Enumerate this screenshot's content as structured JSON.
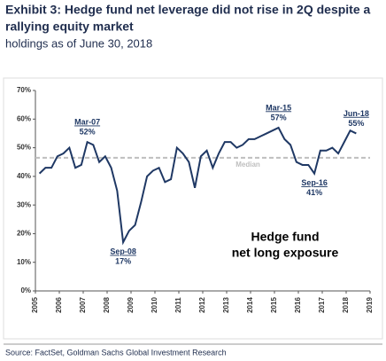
{
  "chart_data": {
    "type": "line",
    "title": [
      "Exhibit 3: Hedge fund net leverage did not rise in 2Q despite a",
      "rallying equity market"
    ],
    "subtitle": "holdings as of June 30, 2018",
    "source": "Source: FactSet, Goldman Sachs Global Investment Research",
    "note": [
      "Hedge fund",
      "net long exposure"
    ],
    "x": [
      2005.17,
      2005.42,
      2005.67,
      2005.92,
      2006.17,
      2006.42,
      2006.67,
      2006.92,
      2007.17,
      2007.42,
      2007.67,
      2007.92,
      2008.17,
      2008.42,
      2008.67,
      2008.92,
      2009.17,
      2009.42,
      2009.67,
      2009.92,
      2010.17,
      2010.42,
      2010.67,
      2010.92,
      2011.17,
      2011.42,
      2011.67,
      2011.92,
      2012.17,
      2012.42,
      2012.67,
      2012.92,
      2013.17,
      2013.42,
      2013.67,
      2013.92,
      2014.17,
      2014.42,
      2014.67,
      2014.92,
      2015.17,
      2015.42,
      2015.67,
      2015.92,
      2016.17,
      2016.42,
      2016.67,
      2016.92,
      2017.17,
      2017.42,
      2017.67,
      2017.92,
      2018.17,
      2018.42
    ],
    "series": [
      {
        "name": "Hedge fund net long exposure",
        "color": "#1f3864",
        "values": [
          41,
          43,
          43,
          47,
          48,
          50,
          43,
          44,
          52,
          51,
          45,
          47,
          43,
          35,
          17,
          21,
          23,
          31,
          40,
          42,
          43,
          38,
          39,
          50,
          48,
          45,
          36,
          47,
          49,
          43,
          48,
          52,
          52,
          50,
          51,
          53,
          53,
          54,
          55,
          56,
          57,
          53,
          51,
          45,
          44,
          44,
          41,
          49,
          49,
          50,
          48,
          52,
          56,
          55
        ]
      }
    ],
    "median": 46.5,
    "median_label": "Median",
    "median_color": "#bfbfbf",
    "annotations": [
      {
        "x": 2007.17,
        "y": 52,
        "label": "Mar-07",
        "value_label": "52%"
      },
      {
        "x": 2008.67,
        "y": 17,
        "label": "Sep-08",
        "value_label": "17%"
      },
      {
        "x": 2015.17,
        "y": 57,
        "label": "Mar-15",
        "value_label": "57%"
      },
      {
        "x": 2016.67,
        "y": 41,
        "label": "Sep-16",
        "value_label": "41%"
      },
      {
        "x": 2018.42,
        "y": 55,
        "label": "Jun-18",
        "value_label": "55%"
      }
    ],
    "xlim": [
      2005,
      2019
    ],
    "xticks": [
      2005,
      2006,
      2007,
      2008,
      2009,
      2010,
      2011,
      2012,
      2013,
      2014,
      2015,
      2016,
      2017,
      2018,
      2019
    ],
    "ylim": [
      0,
      70
    ],
    "yticks": [
      {
        "value": 0,
        "label": "0%"
      },
      {
        "value": 10,
        "label": "10%"
      },
      {
        "value": 20,
        "label": "20%"
      },
      {
        "value": 30,
        "label": "30%"
      },
      {
        "value": 40,
        "label": "40%"
      },
      {
        "value": 50,
        "label": "50%"
      },
      {
        "value": 60,
        "label": "60%"
      },
      {
        "value": 70,
        "label": "70%"
      }
    ]
  }
}
